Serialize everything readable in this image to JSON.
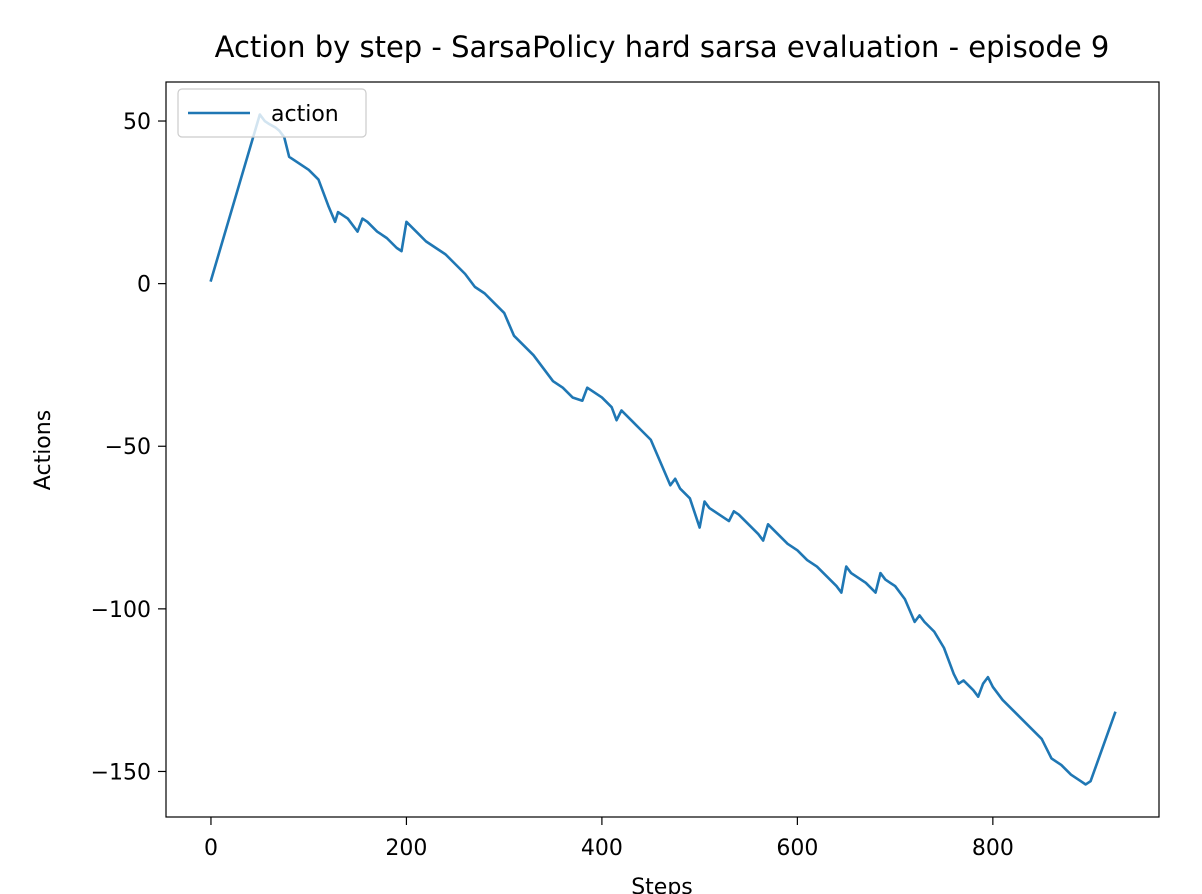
{
  "chart_data": {
    "type": "line",
    "title": "Action by step - SarsaPolicy hard sarsa evaluation - episode 9",
    "xlabel": "Steps",
    "ylabel": "Actions",
    "xlim": [
      -46,
      970
    ],
    "ylim": [
      -164,
      62
    ],
    "x_ticks": [
      0,
      200,
      400,
      600,
      800
    ],
    "y_ticks": [
      -150,
      -100,
      -50,
      0,
      50
    ],
    "x_tick_labels": [
      "0",
      "200",
      "400",
      "600",
      "800"
    ],
    "y_tick_labels": [
      "−150",
      "−100",
      "−50",
      "0",
      "50"
    ],
    "grid": false,
    "legend_position": "top-left",
    "series": [
      {
        "name": "action",
        "color": "#1f77b4",
        "points": [
          [
            0,
            1
          ],
          [
            50,
            52
          ],
          [
            55,
            50
          ],
          [
            60,
            49
          ],
          [
            66,
            48
          ],
          [
            70,
            47
          ],
          [
            75,
            45
          ],
          [
            80,
            39
          ],
          [
            90,
            37
          ],
          [
            100,
            35
          ],
          [
            110,
            32
          ],
          [
            120,
            24
          ],
          [
            127,
            19
          ],
          [
            130,
            22
          ],
          [
            140,
            20
          ],
          [
            150,
            16
          ],
          [
            155,
            20
          ],
          [
            160,
            19
          ],
          [
            170,
            16
          ],
          [
            180,
            14
          ],
          [
            190,
            11
          ],
          [
            195,
            10
          ],
          [
            200,
            19
          ],
          [
            210,
            16
          ],
          [
            220,
            13
          ],
          [
            230,
            11
          ],
          [
            240,
            9
          ],
          [
            250,
            6
          ],
          [
            260,
            3
          ],
          [
            270,
            -1
          ],
          [
            280,
            -3
          ],
          [
            290,
            -6
          ],
          [
            300,
            -9
          ],
          [
            310,
            -16
          ],
          [
            320,
            -19
          ],
          [
            330,
            -22
          ],
          [
            340,
            -26
          ],
          [
            350,
            -30
          ],
          [
            360,
            -32
          ],
          [
            370,
            -35
          ],
          [
            380,
            -36
          ],
          [
            385,
            -32
          ],
          [
            390,
            -33
          ],
          [
            400,
            -35
          ],
          [
            410,
            -38
          ],
          [
            415,
            -42
          ],
          [
            420,
            -39
          ],
          [
            430,
            -42
          ],
          [
            440,
            -45
          ],
          [
            450,
            -48
          ],
          [
            460,
            -55
          ],
          [
            470,
            -62
          ],
          [
            475,
            -60
          ],
          [
            480,
            -63
          ],
          [
            490,
            -66
          ],
          [
            500,
            -75
          ],
          [
            505,
            -67
          ],
          [
            510,
            -69
          ],
          [
            520,
            -71
          ],
          [
            530,
            -73
          ],
          [
            535,
            -70
          ],
          [
            540,
            -71
          ],
          [
            550,
            -74
          ],
          [
            560,
            -77
          ],
          [
            565,
            -79
          ],
          [
            570,
            -74
          ],
          [
            580,
            -77
          ],
          [
            590,
            -80
          ],
          [
            600,
            -82
          ],
          [
            610,
            -85
          ],
          [
            620,
            -87
          ],
          [
            630,
            -90
          ],
          [
            640,
            -93
          ],
          [
            645,
            -95
          ],
          [
            650,
            -87
          ],
          [
            655,
            -89
          ],
          [
            660,
            -90
          ],
          [
            670,
            -92
          ],
          [
            680,
            -95
          ],
          [
            685,
            -89
          ],
          [
            690,
            -91
          ],
          [
            700,
            -93
          ],
          [
            710,
            -97
          ],
          [
            720,
            -104
          ],
          [
            725,
            -102
          ],
          [
            730,
            -104
          ],
          [
            740,
            -107
          ],
          [
            750,
            -112
          ],
          [
            760,
            -120
          ],
          [
            765,
            -123
          ],
          [
            770,
            -122
          ],
          [
            780,
            -125
          ],
          [
            785,
            -127
          ],
          [
            790,
            -123
          ],
          [
            795,
            -121
          ],
          [
            800,
            -124
          ],
          [
            810,
            -128
          ],
          [
            820,
            -131
          ],
          [
            830,
            -134
          ],
          [
            840,
            -137
          ],
          [
            850,
            -140
          ],
          [
            860,
            -146
          ],
          [
            870,
            -148
          ],
          [
            880,
            -151
          ],
          [
            890,
            -153
          ],
          [
            895,
            -154
          ],
          [
            900,
            -153
          ],
          [
            925,
            -132
          ]
        ]
      }
    ]
  }
}
